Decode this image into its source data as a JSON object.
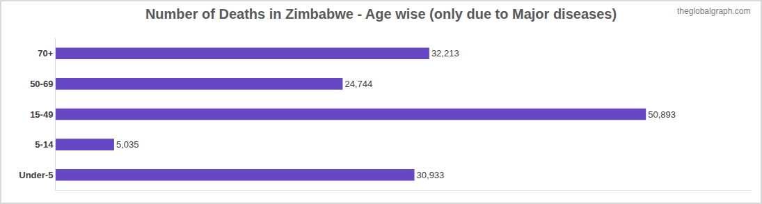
{
  "chart_data": {
    "type": "bar",
    "orientation": "horizontal",
    "title": "Number of Deaths in Zimbabwe - Age wise (only due to Major diseases)",
    "categories": [
      "Under-5",
      "5-14",
      "15-49",
      "50-69",
      "70+"
    ],
    "values": [
      30933,
      5035,
      50893,
      24744,
      32213
    ],
    "value_labels": [
      "30,933",
      "5,035",
      "50,893",
      "24,744",
      "32,213"
    ],
    "color": "#6648c4",
    "xlim": [
      0,
      60000
    ],
    "grid": false,
    "data_labels": true,
    "tick_labels": "y",
    "annotations": [
      "theglobalgraph.com"
    ]
  }
}
